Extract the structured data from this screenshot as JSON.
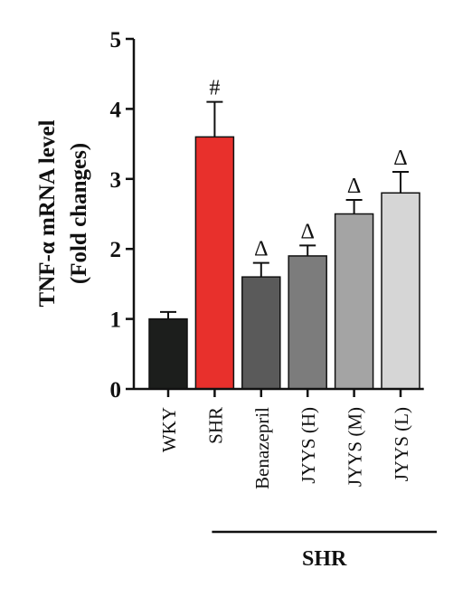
{
  "chart_data": {
    "type": "bar",
    "ylabel_line1": "TNF-α mRNA level",
    "ylabel_line2": "(Fold changes)",
    "ylim": [
      0,
      5
    ],
    "yticks": [
      "0",
      "1",
      "2",
      "3",
      "4",
      "5"
    ],
    "categories": [
      "WKY",
      "SHR",
      "Benazepril",
      "JYYS (H)",
      "JYYS (M)",
      "JYYS (L)"
    ],
    "values": [
      1.0,
      3.6,
      1.6,
      1.9,
      2.5,
      2.8
    ],
    "errors": [
      0.1,
      0.5,
      0.2,
      0.15,
      0.2,
      0.3
    ],
    "annotations": [
      "",
      "#",
      "Δ",
      "Δ",
      "Δ",
      "Δ"
    ],
    "colors": [
      "#1c1e1c",
      "#e8302c",
      "#5a5a5a",
      "#7c7c7c",
      "#a4a4a4",
      "#d6d6d6"
    ],
    "group_label": "SHR",
    "group_span": [
      "SHR",
      "JYYS (L)"
    ]
  }
}
